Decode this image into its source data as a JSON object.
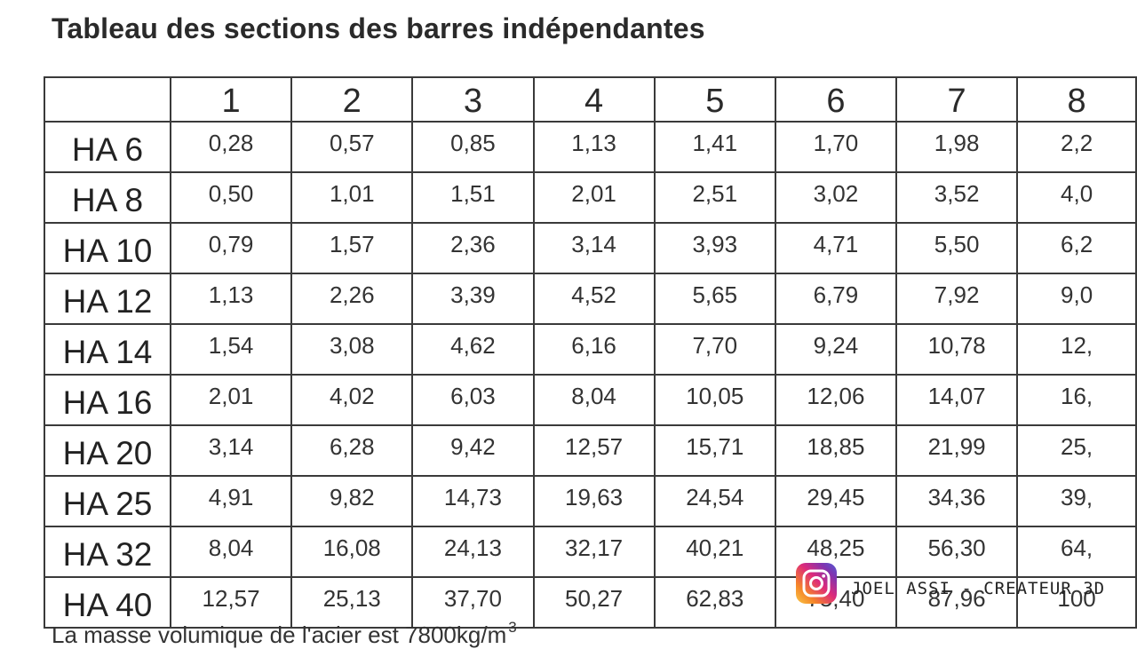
{
  "title": "Tableau des sections des barres indépendantes",
  "columns": [
    "1",
    "2",
    "3",
    "4",
    "5",
    "6",
    "7",
    "8"
  ],
  "rows": [
    {
      "label": "HA 6",
      "values": [
        "0,28",
        "0,57",
        "0,85",
        "1,13",
        "1,41",
        "1,70",
        "1,98",
        "2,2"
      ]
    },
    {
      "label": "HA 8",
      "values": [
        "0,50",
        "1,01",
        "1,51",
        "2,01",
        "2,51",
        "3,02",
        "3,52",
        "4,0"
      ]
    },
    {
      "label": "HA 10",
      "values": [
        "0,79",
        "1,57",
        "2,36",
        "3,14",
        "3,93",
        "4,71",
        "5,50",
        "6,2"
      ]
    },
    {
      "label": "HA 12",
      "values": [
        "1,13",
        "2,26",
        "3,39",
        "4,52",
        "5,65",
        "6,79",
        "7,92",
        "9,0"
      ]
    },
    {
      "label": "HA 14",
      "values": [
        "1,54",
        "3,08",
        "4,62",
        "6,16",
        "7,70",
        "9,24",
        "10,78",
        "12,"
      ]
    },
    {
      "label": "HA 16",
      "values": [
        "2,01",
        "4,02",
        "6,03",
        "8,04",
        "10,05",
        "12,06",
        "14,07",
        "16,"
      ]
    },
    {
      "label": "HA 20",
      "values": [
        "3,14",
        "6,28",
        "9,42",
        "12,57",
        "15,71",
        "18,85",
        "21,99",
        "25,"
      ]
    },
    {
      "label": "HA 25",
      "values": [
        "4,91",
        "9,82",
        "14,73",
        "19,63",
        "24,54",
        "29,45",
        "34,36",
        "39,"
      ]
    },
    {
      "label": "HA 32",
      "values": [
        "8,04",
        "16,08",
        "24,13",
        "32,17",
        "40,21",
        "48,25",
        "56,30",
        "64,"
      ]
    },
    {
      "label": "HA 40",
      "values": [
        "12,57",
        "25,13",
        "37,70",
        "50,27",
        "62,83",
        "75,40",
        "87,96",
        "100"
      ]
    }
  ],
  "footer_note": {
    "text": "La masse volumique de l'acier est 7800kg/m",
    "superscript": "3"
  },
  "credit": {
    "icon": "instagram-icon",
    "text": "JOEL ASSI - CREATEUR 3D"
  }
}
